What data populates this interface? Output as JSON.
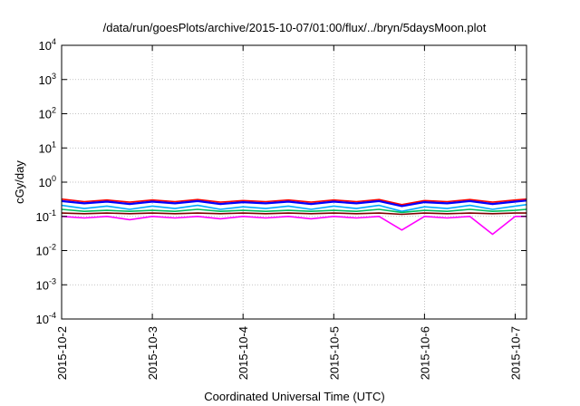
{
  "chart_data": {
    "type": "line",
    "title": "/data/run/goesPlots/archive/2015-10-07/01:00/flux/../bryn/5daysMoon.plot",
    "xlabel": "Coordinated Universal Time (UTC)",
    "ylabel": "cGy/day",
    "y_scale": "log",
    "ylim": [
      0.0001,
      10000
    ],
    "xlim": [
      "2015-10-02 00:00",
      "2015-10-07 03:00"
    ],
    "x_ticks": [
      "2015-10-2",
      "2015-10-3",
      "2015-10-4",
      "2015-10-5",
      "2015-10-6",
      "2015-10-7"
    ],
    "y_ticks": [
      {
        "base": "10",
        "exp": "-4",
        "value": 0.0001
      },
      {
        "base": "10",
        "exp": "-3",
        "value": 0.001
      },
      {
        "base": "10",
        "exp": "-2",
        "value": 0.01
      },
      {
        "base": "10",
        "exp": "-1",
        "value": 0.1
      },
      {
        "base": "10",
        "exp": "0",
        "value": 1
      },
      {
        "base": "10",
        "exp": "1",
        "value": 10
      },
      {
        "base": "10",
        "exp": "2",
        "value": 100
      },
      {
        "base": "10",
        "exp": "3",
        "value": 1000
      },
      {
        "base": "10",
        "exp": "4",
        "value": 10000
      }
    ],
    "grid": true,
    "x": [
      "2015-10-02 00:00",
      "2015-10-02 06:00",
      "2015-10-02 12:00",
      "2015-10-02 18:00",
      "2015-10-03 00:00",
      "2015-10-03 06:00",
      "2015-10-03 12:00",
      "2015-10-03 18:00",
      "2015-10-04 00:00",
      "2015-10-04 06:00",
      "2015-10-04 12:00",
      "2015-10-04 18:00",
      "2015-10-05 00:00",
      "2015-10-05 06:00",
      "2015-10-05 12:00",
      "2015-10-05 18:00",
      "2015-10-06 00:00",
      "2015-10-06 06:00",
      "2015-10-06 12:00",
      "2015-10-06 18:00",
      "2015-10-07 00:00",
      "2015-10-07 03:00"
    ],
    "series": [
      {
        "color": "#ff0000",
        "values": [
          0.32,
          0.27,
          0.3,
          0.26,
          0.3,
          0.27,
          0.31,
          0.26,
          0.29,
          0.27,
          0.3,
          0.26,
          0.3,
          0.27,
          0.31,
          0.22,
          0.29,
          0.27,
          0.31,
          0.26,
          0.3,
          0.32
        ]
      },
      {
        "color": "#0000ff",
        "values": [
          0.28,
          0.24,
          0.27,
          0.23,
          0.27,
          0.24,
          0.28,
          0.23,
          0.26,
          0.24,
          0.27,
          0.23,
          0.27,
          0.24,
          0.28,
          0.2,
          0.26,
          0.24,
          0.28,
          0.23,
          0.27,
          0.29
        ]
      },
      {
        "color": "#00aaff",
        "values": [
          0.21,
          0.17,
          0.2,
          0.16,
          0.2,
          0.17,
          0.21,
          0.16,
          0.19,
          0.17,
          0.2,
          0.16,
          0.2,
          0.17,
          0.21,
          0.14,
          0.19,
          0.17,
          0.21,
          0.16,
          0.2,
          0.22
        ]
      },
      {
        "color": "#00c060",
        "values": [
          0.16,
          0.14,
          0.15,
          0.14,
          0.15,
          0.14,
          0.16,
          0.14,
          0.15,
          0.14,
          0.15,
          0.14,
          0.15,
          0.14,
          0.16,
          0.13,
          0.15,
          0.14,
          0.16,
          0.14,
          0.15,
          0.16
        ]
      },
      {
        "color": "#800000",
        "values": [
          0.125,
          0.12,
          0.125,
          0.12,
          0.125,
          0.12,
          0.125,
          0.12,
          0.125,
          0.12,
          0.125,
          0.12,
          0.125,
          0.12,
          0.125,
          0.115,
          0.125,
          0.12,
          0.125,
          0.12,
          0.125,
          0.125
        ]
      },
      {
        "color": "#ff00ff",
        "values": [
          0.1,
          0.09,
          0.1,
          0.08,
          0.1,
          0.09,
          0.1,
          0.085,
          0.1,
          0.09,
          0.1,
          0.085,
          0.1,
          0.09,
          0.1,
          0.04,
          0.1,
          0.09,
          0.1,
          0.03,
          0.1,
          0.1
        ]
      }
    ]
  }
}
